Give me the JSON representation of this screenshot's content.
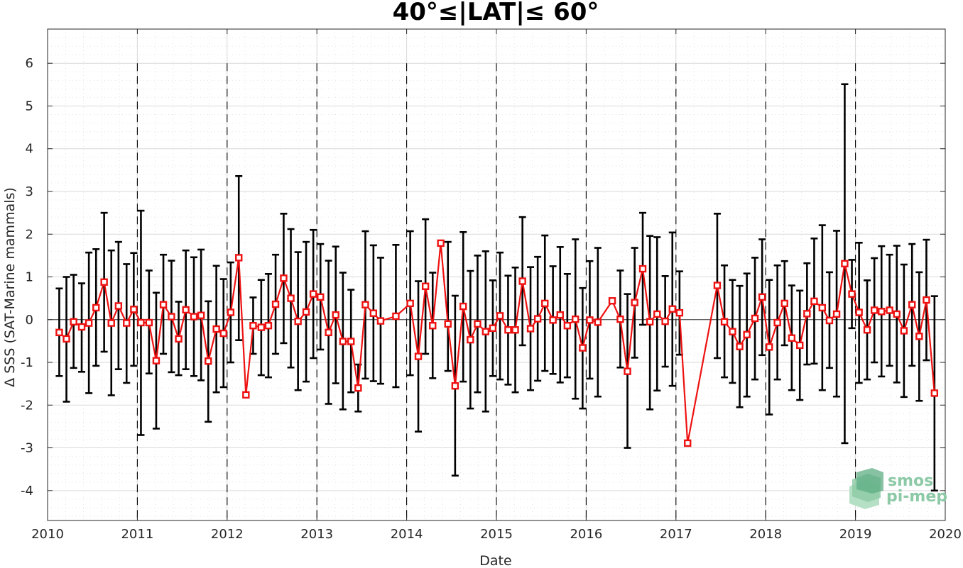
{
  "chart_data": {
    "type": "line",
    "title": "40°≤|LAT|≤ 60°",
    "xlabel": "Date",
    "ylabel": "Δ SSS (SAT-Marine mammals)",
    "xlim": [
      2010,
      2020
    ],
    "ylim": [
      -4.7,
      6.8
    ],
    "x_ticks": [
      2010,
      2011,
      2012,
      2013,
      2014,
      2015,
      2016,
      2017,
      2018,
      2019,
      2020
    ],
    "y_ticks": [
      -4,
      -3,
      -2,
      -1,
      0,
      1,
      2,
      3,
      4,
      5,
      6
    ],
    "year_dividers": [
      2011,
      2012,
      2013,
      2014,
      2015,
      2016,
      2017,
      2018,
      2019
    ],
    "zero_line": 0,
    "grid": "dotted minor grid",
    "series": [
      {
        "color": "#ee1111",
        "errorbar_color": "#000000",
        "marker": "square",
        "points": [
          {
            "x": 2010.13,
            "y": -0.3,
            "lo": -1.32,
            "hi": 0.73
          },
          {
            "x": 2010.21,
            "y": -0.45,
            "lo": -1.92,
            "hi": 1.0
          },
          {
            "x": 2010.29,
            "y": -0.05,
            "lo": -1.13,
            "hi": 1.05
          },
          {
            "x": 2010.38,
            "y": -0.17,
            "lo": -1.22,
            "hi": 0.85
          },
          {
            "x": 2010.46,
            "y": -0.08,
            "lo": -1.72,
            "hi": 1.57
          },
          {
            "x": 2010.54,
            "y": 0.28,
            "lo": -1.08,
            "hi": 1.65
          },
          {
            "x": 2010.63,
            "y": 0.88,
            "lo": -0.75,
            "hi": 2.5
          },
          {
            "x": 2010.71,
            "y": -0.08,
            "lo": -1.77,
            "hi": 1.62
          },
          {
            "x": 2010.79,
            "y": 0.32,
            "lo": -1.16,
            "hi": 1.82
          },
          {
            "x": 2010.88,
            "y": -0.08,
            "lo": -1.48,
            "hi": 1.3
          },
          {
            "x": 2010.96,
            "y": 0.24,
            "lo": -1.08,
            "hi": 1.56
          },
          {
            "x": 2011.04,
            "y": -0.07,
            "lo": -2.7,
            "hi": 2.55
          },
          {
            "x": 2011.13,
            "y": -0.07,
            "lo": -1.26,
            "hi": 1.15
          },
          {
            "x": 2011.21,
            "y": -0.96,
            "lo": -2.55,
            "hi": 0.63
          },
          {
            "x": 2011.29,
            "y": 0.35,
            "lo": -0.8,
            "hi": 1.52
          },
          {
            "x": 2011.38,
            "y": 0.07,
            "lo": -1.23,
            "hi": 1.38
          },
          {
            "x": 2011.46,
            "y": -0.45,
            "lo": -1.3,
            "hi": 0.42
          },
          {
            "x": 2011.54,
            "y": 0.23,
            "lo": -1.16,
            "hi": 1.62
          },
          {
            "x": 2011.63,
            "y": 0.07,
            "lo": -1.32,
            "hi": 1.46
          },
          {
            "x": 2011.71,
            "y": 0.1,
            "lo": -1.42,
            "hi": 1.64
          },
          {
            "x": 2011.79,
            "y": -0.97,
            "lo": -2.39,
            "hi": 0.43
          },
          {
            "x": 2011.88,
            "y": -0.22,
            "lo": -1.7,
            "hi": 1.26
          },
          {
            "x": 2011.96,
            "y": -0.32,
            "lo": -1.58,
            "hi": 0.95
          },
          {
            "x": 2012.04,
            "y": 0.17,
            "lo": -1.0,
            "hi": 1.34
          },
          {
            "x": 2012.13,
            "y": 1.45,
            "lo": -0.48,
            "hi": 3.36
          },
          {
            "x": 2012.21,
            "y": -1.76,
            "lo": -1.76,
            "hi": -1.76
          },
          {
            "x": 2012.29,
            "y": -0.14,
            "lo": -0.8,
            "hi": 0.52
          },
          {
            "x": 2012.38,
            "y": -0.18,
            "lo": -1.3,
            "hi": 0.93
          },
          {
            "x": 2012.46,
            "y": -0.14,
            "lo": -1.35,
            "hi": 1.07
          },
          {
            "x": 2012.54,
            "y": 0.36,
            "lo": -0.8,
            "hi": 1.52
          },
          {
            "x": 2012.63,
            "y": 0.97,
            "lo": -0.55,
            "hi": 2.48
          },
          {
            "x": 2012.71,
            "y": 0.5,
            "lo": -1.12,
            "hi": 2.12
          },
          {
            "x": 2012.79,
            "y": -0.04,
            "lo": -1.65,
            "hi": 1.58
          },
          {
            "x": 2012.88,
            "y": 0.18,
            "lo": -1.45,
            "hi": 1.82
          },
          {
            "x": 2012.96,
            "y": 0.6,
            "lo": -0.9,
            "hi": 2.1
          },
          {
            "x": 2013.04,
            "y": 0.53,
            "lo": -0.7,
            "hi": 1.77
          },
          {
            "x": 2013.13,
            "y": -0.3,
            "lo": -1.97,
            "hi": 1.38
          },
          {
            "x": 2013.21,
            "y": 0.11,
            "lo": -1.49,
            "hi": 1.71
          },
          {
            "x": 2013.29,
            "y": -0.51,
            "lo": -2.1,
            "hi": 1.1
          },
          {
            "x": 2013.38,
            "y": -0.51,
            "lo": -1.7,
            "hi": 0.7
          },
          {
            "x": 2013.46,
            "y": -1.6,
            "lo": -2.15,
            "hi": -1.05
          },
          {
            "x": 2013.54,
            "y": 0.35,
            "lo": -1.38,
            "hi": 2.07
          },
          {
            "x": 2013.63,
            "y": 0.15,
            "lo": -1.44,
            "hi": 1.74
          },
          {
            "x": 2013.71,
            "y": -0.03,
            "lo": -1.5,
            "hi": 1.45
          },
          {
            "x": 2013.88,
            "y": 0.08,
            "lo": -1.58,
            "hi": 1.75
          },
          {
            "x": 2014.04,
            "y": 0.38,
            "lo": -1.3,
            "hi": 2.07
          },
          {
            "x": 2014.13,
            "y": -0.86,
            "lo": -2.62,
            "hi": 0.9
          },
          {
            "x": 2014.21,
            "y": 0.78,
            "lo": -0.8,
            "hi": 2.35
          },
          {
            "x": 2014.29,
            "y": -0.14,
            "lo": -1.37,
            "hi": 1.1
          },
          {
            "x": 2014.38,
            "y": 1.79,
            "lo": 1.79,
            "hi": 1.79
          },
          {
            "x": 2014.46,
            "y": -0.1,
            "lo": -1.2,
            "hi": 1.82
          },
          {
            "x": 2014.54,
            "y": -1.55,
            "lo": -3.65,
            "hi": 0.56
          },
          {
            "x": 2014.63,
            "y": 0.31,
            "lo": -1.45,
            "hi": 2.05
          },
          {
            "x": 2014.71,
            "y": -0.47,
            "lo": -2.08,
            "hi": 1.14
          },
          {
            "x": 2014.79,
            "y": -0.1,
            "lo": -1.7,
            "hi": 1.5
          },
          {
            "x": 2014.88,
            "y": -0.28,
            "lo": -2.15,
            "hi": 1.6
          },
          {
            "x": 2014.96,
            "y": -0.2,
            "lo": -1.32,
            "hi": 0.92
          },
          {
            "x": 2015.04,
            "y": 0.09,
            "lo": -1.4,
            "hi": 1.57
          },
          {
            "x": 2015.13,
            "y": -0.24,
            "lo": -1.52,
            "hi": 1.03
          },
          {
            "x": 2015.21,
            "y": -0.24,
            "lo": -1.7,
            "hi": 1.22
          },
          {
            "x": 2015.29,
            "y": 0.9,
            "lo": -0.6,
            "hi": 2.4
          },
          {
            "x": 2015.38,
            "y": -0.21,
            "lo": -1.65,
            "hi": 1.23
          },
          {
            "x": 2015.46,
            "y": 0.02,
            "lo": -1.43,
            "hi": 1.47
          },
          {
            "x": 2015.54,
            "y": 0.38,
            "lo": -1.2,
            "hi": 1.97
          },
          {
            "x": 2015.63,
            "y": -0.01,
            "lo": -1.27,
            "hi": 1.25
          },
          {
            "x": 2015.71,
            "y": 0.11,
            "lo": -1.47,
            "hi": 1.7
          },
          {
            "x": 2015.79,
            "y": -0.14,
            "lo": -1.35,
            "hi": 1.07
          },
          {
            "x": 2015.88,
            "y": 0.01,
            "lo": -1.85,
            "hi": 1.88
          },
          {
            "x": 2015.96,
            "y": -0.66,
            "lo": -2.08,
            "hi": 0.74
          },
          {
            "x": 2016.04,
            "y": -0.01,
            "lo": -1.38,
            "hi": 1.37
          },
          {
            "x": 2016.13,
            "y": -0.06,
            "lo": -1.8,
            "hi": 1.68
          },
          {
            "x": 2016.29,
            "y": 0.44,
            "lo": 0.44,
            "hi": 0.44
          },
          {
            "x": 2016.38,
            "y": 0.01,
            "lo": -1.12,
            "hi": 1.15
          },
          {
            "x": 2016.46,
            "y": -1.21,
            "lo": -3.0,
            "hi": 0.6
          },
          {
            "x": 2016.54,
            "y": 0.4,
            "lo": -0.89,
            "hi": 1.68
          },
          {
            "x": 2016.63,
            "y": 1.19,
            "lo": -0.12,
            "hi": 2.5
          },
          {
            "x": 2016.71,
            "y": -0.05,
            "lo": -2.1,
            "hi": 1.96
          },
          {
            "x": 2016.79,
            "y": 0.13,
            "lo": -1.66,
            "hi": 1.93
          },
          {
            "x": 2016.88,
            "y": -0.04,
            "lo": -1.1,
            "hi": 1.02
          },
          {
            "x": 2016.96,
            "y": 0.25,
            "lo": -1.55,
            "hi": 2.04
          },
          {
            "x": 2017.04,
            "y": 0.16,
            "lo": -0.82,
            "hi": 1.13
          },
          {
            "x": 2017.13,
            "y": -2.89,
            "lo": -2.89,
            "hi": -2.89
          },
          {
            "x": 2017.46,
            "y": 0.8,
            "lo": -0.9,
            "hi": 2.48
          },
          {
            "x": 2017.54,
            "y": -0.05,
            "lo": -1.35,
            "hi": 1.27
          },
          {
            "x": 2017.63,
            "y": -0.28,
            "lo": -1.48,
            "hi": 0.93
          },
          {
            "x": 2017.71,
            "y": -0.63,
            "lo": -2.05,
            "hi": 0.79
          },
          {
            "x": 2017.79,
            "y": -0.35,
            "lo": -1.8,
            "hi": 1.08
          },
          {
            "x": 2017.88,
            "y": 0.03,
            "lo": -1.4,
            "hi": 1.45
          },
          {
            "x": 2017.96,
            "y": 0.53,
            "lo": -0.83,
            "hi": 1.88
          },
          {
            "x": 2018.04,
            "y": -0.64,
            "lo": -2.22,
            "hi": 0.93
          },
          {
            "x": 2018.13,
            "y": -0.07,
            "lo": -1.4,
            "hi": 1.27
          },
          {
            "x": 2018.21,
            "y": 0.38,
            "lo": -0.6,
            "hi": 1.37
          },
          {
            "x": 2018.29,
            "y": -0.43,
            "lo": -1.65,
            "hi": 0.8
          },
          {
            "x": 2018.38,
            "y": -0.6,
            "lo": -1.88,
            "hi": 0.68
          },
          {
            "x": 2018.46,
            "y": 0.14,
            "lo": -1.05,
            "hi": 1.32
          },
          {
            "x": 2018.54,
            "y": 0.43,
            "lo": -1.03,
            "hi": 1.9
          },
          {
            "x": 2018.63,
            "y": 0.28,
            "lo": -1.65,
            "hi": 2.21
          },
          {
            "x": 2018.71,
            "y": -0.02,
            "lo": -1.13,
            "hi": 1.11
          },
          {
            "x": 2018.79,
            "y": 0.13,
            "lo": -1.8,
            "hi": 2.08
          },
          {
            "x": 2018.88,
            "y": 1.31,
            "lo": -2.89,
            "hi": 5.51
          },
          {
            "x": 2018.96,
            "y": 0.6,
            "lo": -0.2,
            "hi": 1.4
          },
          {
            "x": 2019.04,
            "y": 0.17,
            "lo": -1.48,
            "hi": 1.8
          },
          {
            "x": 2019.13,
            "y": -0.24,
            "lo": -1.4,
            "hi": 0.92
          },
          {
            "x": 2019.21,
            "y": 0.22,
            "lo": -1.0,
            "hi": 1.44
          },
          {
            "x": 2019.29,
            "y": 0.19,
            "lo": -1.33,
            "hi": 1.72
          },
          {
            "x": 2019.38,
            "y": 0.22,
            "lo": -1.08,
            "hi": 1.52
          },
          {
            "x": 2019.46,
            "y": 0.13,
            "lo": -1.47,
            "hi": 1.73
          },
          {
            "x": 2019.54,
            "y": -0.26,
            "lo": -1.81,
            "hi": 1.29
          },
          {
            "x": 2019.63,
            "y": 0.35,
            "lo": -1.08,
            "hi": 1.77
          },
          {
            "x": 2019.71,
            "y": -0.39,
            "lo": -1.9,
            "hi": 1.11
          },
          {
            "x": 2019.79,
            "y": 0.46,
            "lo": -0.95,
            "hi": 1.87
          },
          {
            "x": 2019.88,
            "y": -1.72,
            "lo": -4.0,
            "hi": 0.55
          }
        ]
      }
    ]
  },
  "logo": {
    "line1": "smos",
    "line2": "pi-mep"
  }
}
